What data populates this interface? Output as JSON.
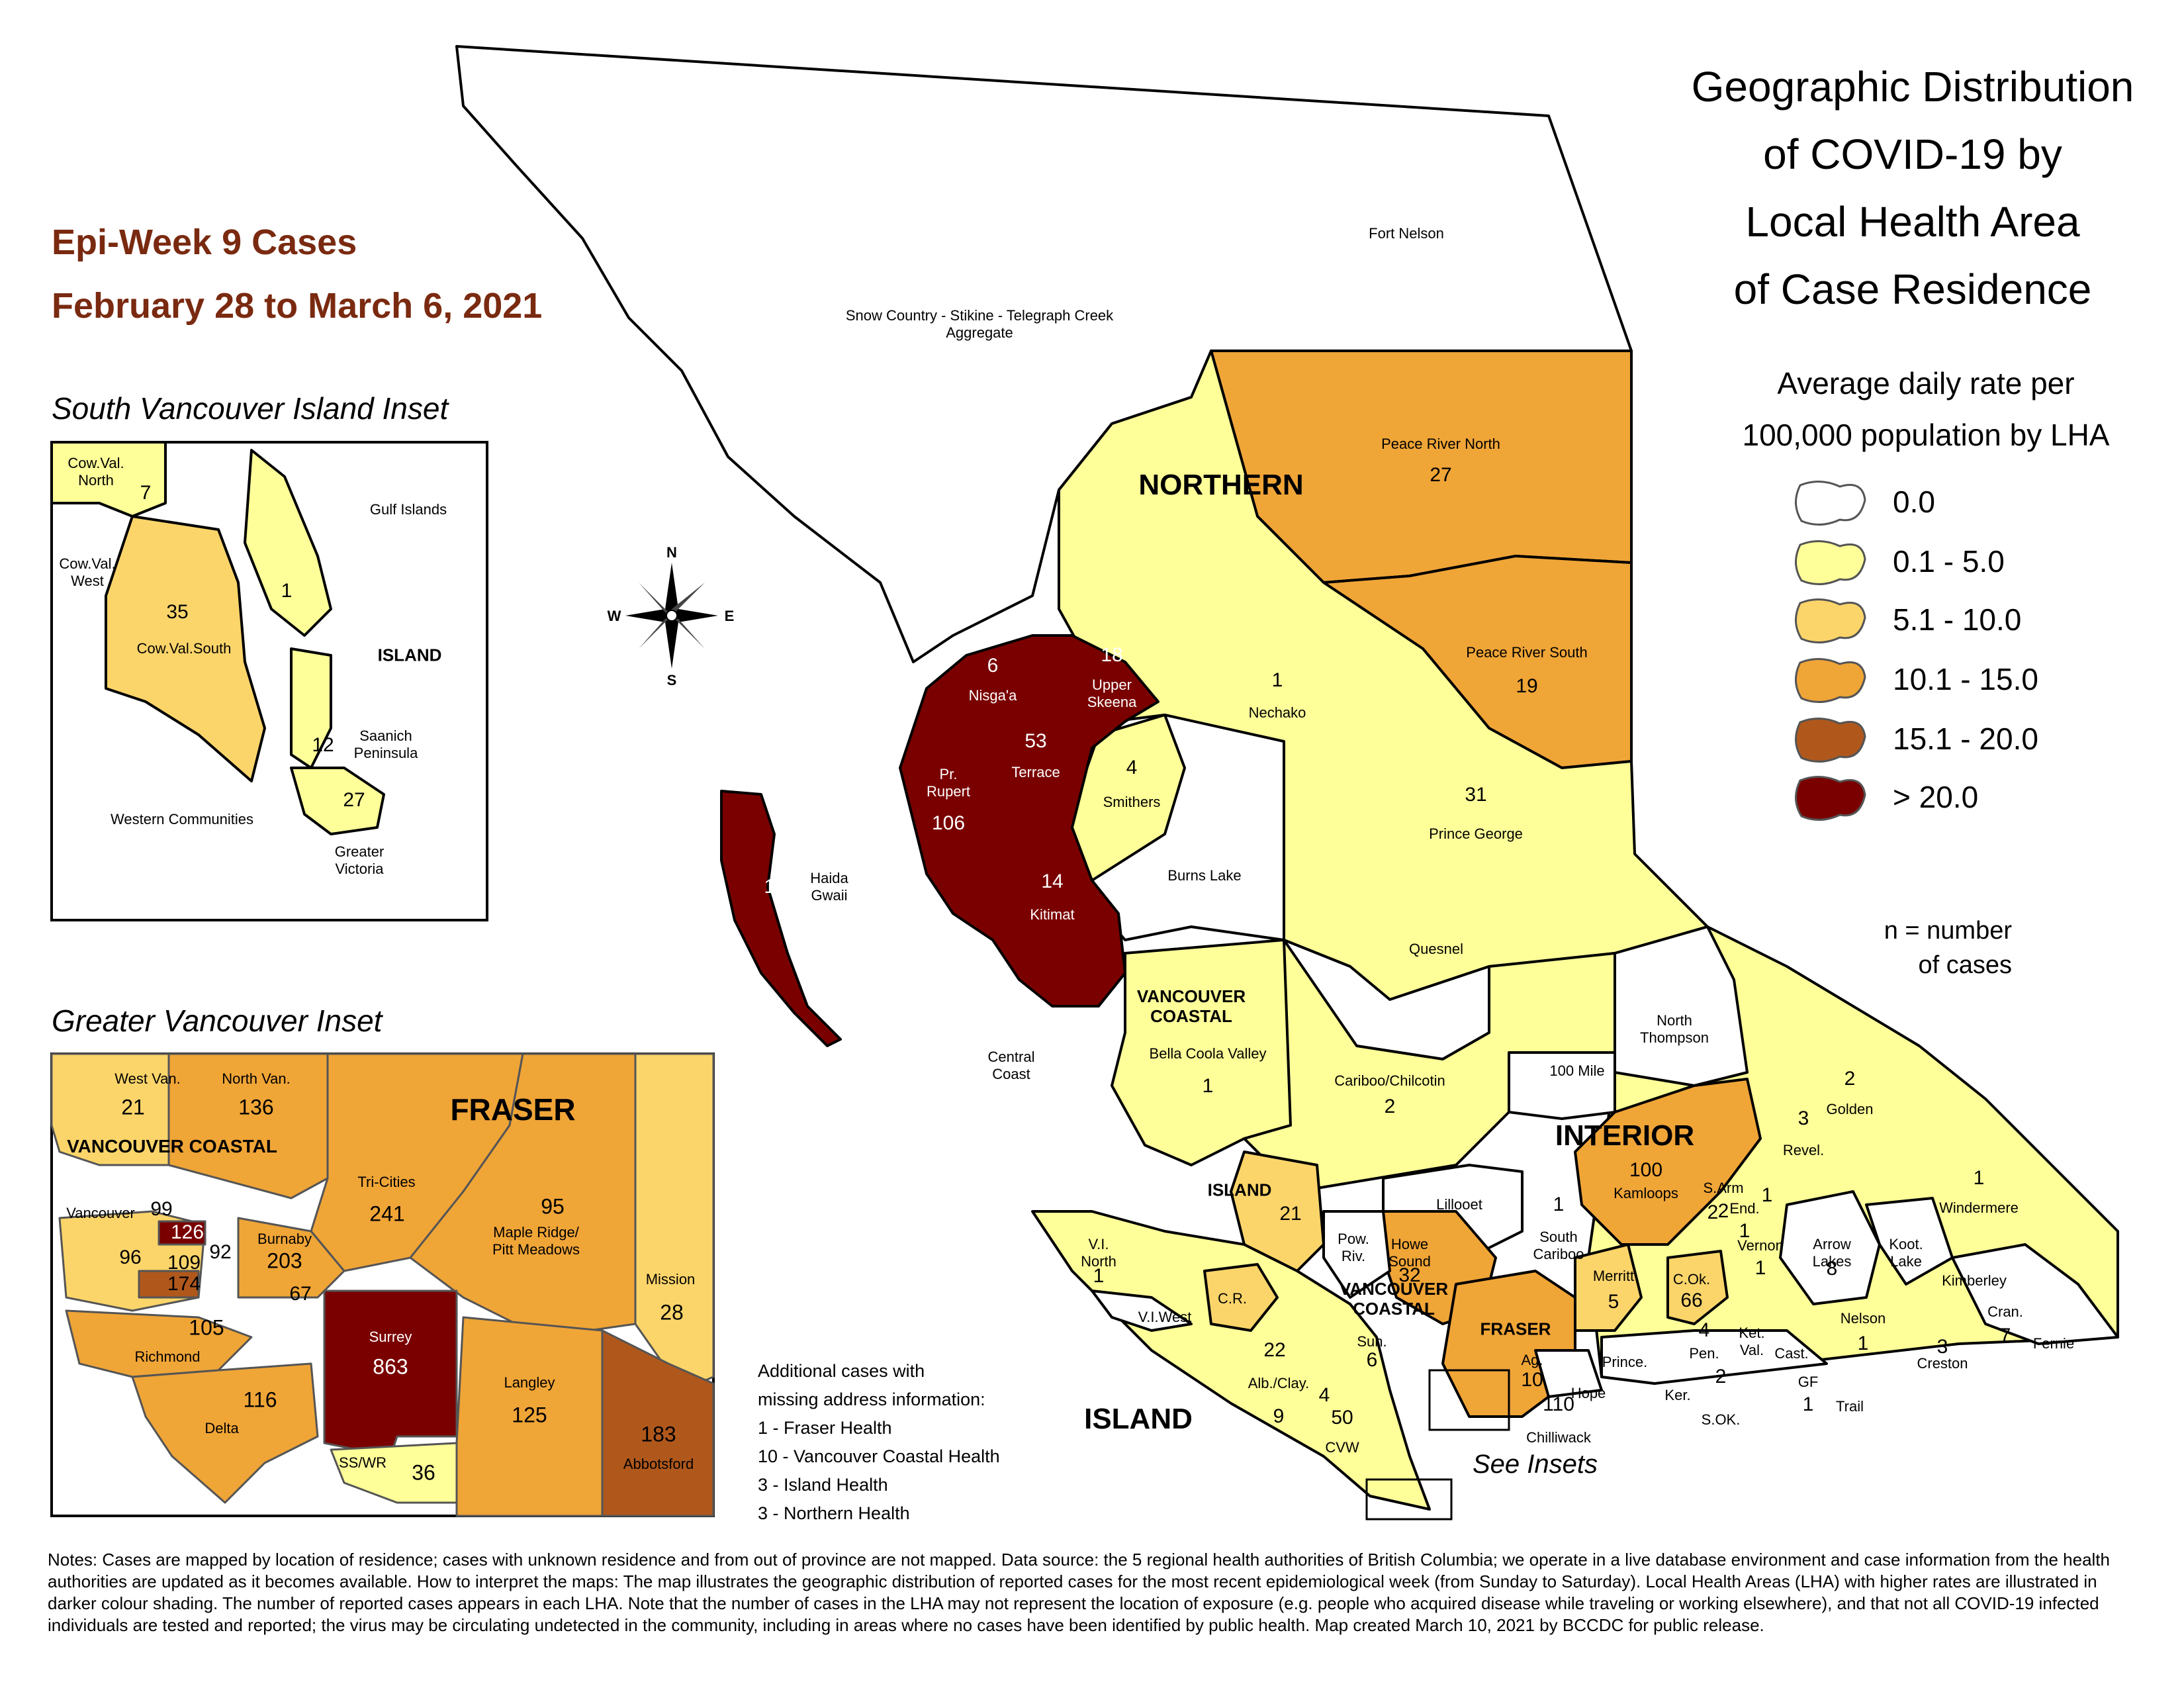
{
  "title": {
    "lines": [
      "Geographic Distribution",
      "of COVID-19 by",
      "Local Health Area",
      "of Case Residence"
    ]
  },
  "epi": {
    "line1": "Epi-Week 9 Cases",
    "line2": "February 28 to March 6, 2021"
  },
  "legend": {
    "title_line1": "Average daily rate per",
    "title_line2": "100,000 population by LHA",
    "items": [
      {
        "label": "0.0",
        "color": "#ffffff"
      },
      {
        "label": "0.1 - 5.0",
        "color": "#ffff99"
      },
      {
        "label": "5.1 - 10.0",
        "color": "#fcd56a"
      },
      {
        "label": "10.1 - 15.0",
        "color": "#f0a537"
      },
      {
        "label": "15.1 - 20.0",
        "color": "#b0581c"
      },
      {
        "label": "> 20.0",
        "color": "#7a0000"
      }
    ],
    "n_note_line1": "n = number",
    "n_note_line2": "of cases"
  },
  "compass": {
    "n": "N",
    "s": "S",
    "e": "E",
    "w": "W"
  },
  "regions": {
    "northern": "NORTHERN",
    "interior": "INTERIOR",
    "island_main": "ISLAND",
    "island_mid": "ISLAND",
    "vc_north_1": "VANCOUVER",
    "vc_north_2": "COASTAL",
    "vc_south_1": "VANCOUVER",
    "vc_south_2": "COASTAL",
    "fraser": "FRASER"
  },
  "lha_main": [
    {
      "id": "fort-nelson",
      "name": "Fort Nelson",
      "cases": ""
    },
    {
      "id": "snow-country",
      "name": "Snow Country - Stikine - Telegraph Creek",
      "name2": "Aggregate",
      "cases": ""
    },
    {
      "id": "peace-river-north",
      "name": "Peace River North",
      "cases": "27"
    },
    {
      "id": "peace-river-south",
      "name": "Peace River South",
      "cases": "19"
    },
    {
      "id": "nechako",
      "name": "Nechako",
      "cases": "1"
    },
    {
      "id": "prince-george",
      "name": "Prince George",
      "cases": "31"
    },
    {
      "id": "burns-lake",
      "name": "Burns Lake",
      "cases": ""
    },
    {
      "id": "quesnel",
      "name": "Quesnel",
      "cases": ""
    },
    {
      "id": "smithers",
      "name": "Smithers",
      "cases": "4"
    },
    {
      "id": "nisgaa",
      "name": "Nisga'a",
      "cases": "6"
    },
    {
      "id": "upper-skeena",
      "name": "Upper",
      "name2": "Skeena",
      "cases": "18"
    },
    {
      "id": "terrace",
      "name": "Terrace",
      "cases": "53"
    },
    {
      "id": "pr-rupert",
      "name": "Pr.",
      "name2": "Rupert",
      "cases": "106"
    },
    {
      "id": "kitimat",
      "name": "Kitimat",
      "cases": "14"
    },
    {
      "id": "haida-gwaii",
      "name": "Haida",
      "name2": "Gwaii",
      "cases": "11"
    },
    {
      "id": "central-coast",
      "name": "Central",
      "name2": "Coast",
      "cases": ""
    },
    {
      "id": "bella-coola",
      "name": "Bella Coola Valley",
      "cases": "1"
    },
    {
      "id": "cariboo",
      "name": "Cariboo/Chilcotin",
      "cases": "2"
    },
    {
      "id": "100-mile",
      "name": "100 Mile",
      "cases": ""
    },
    {
      "id": "north-thompson",
      "name": "North",
      "name2": "Thompson",
      "cases": ""
    },
    {
      "id": "kamloops",
      "name": "Kamloops",
      "cases": "100"
    },
    {
      "id": "golden",
      "name": "Golden",
      "cases": "2"
    },
    {
      "id": "revel",
      "name": "Revel.",
      "cases": "3"
    },
    {
      "id": "windermere",
      "name": "Windermere",
      "cases": "1"
    },
    {
      "id": "lillooet",
      "name": "Lillooet",
      "cases": ""
    },
    {
      "id": "south-cariboo",
      "name": "South",
      "name2": "Cariboo",
      "cases": "1"
    },
    {
      "id": "s-arm",
      "name": "S.Arm",
      "cases": "2"
    },
    {
      "id": "end",
      "name": "End.",
      "cases": "1"
    },
    {
      "id": "vernon",
      "name": "Vernon",
      "cases": "1"
    },
    {
      "id": "arrow-lakes",
      "name": "Arrow",
      "name2": "Lakes",
      "cases": "8"
    },
    {
      "id": "koot-lake",
      "name": "Koot.",
      "name2": "Lake",
      "cases": ""
    },
    {
      "id": "kimberley",
      "name": "Kimberley",
      "cases": ""
    },
    {
      "id": "merritt",
      "name": "Merritt",
      "cases": "5"
    },
    {
      "id": "c-ok",
      "name": "C.Ok.",
      "cases": "66"
    },
    {
      "id": "nelson",
      "name": "Nelson",
      "cases": "1"
    },
    {
      "id": "creston",
      "name": "Creston",
      "cases": "3"
    },
    {
      "id": "cran",
      "name": "Cran.",
      "cases": "7"
    },
    {
      "id": "fernie",
      "name": "Fernie",
      "cases": ""
    },
    {
      "id": "pen",
      "name": "Pen.",
      "cases": "4"
    },
    {
      "id": "ket-val",
      "name": "Ket.",
      "name2": "Val.",
      "cases": ""
    },
    {
      "id": "prince",
      "name": "Prince.",
      "cases": ""
    },
    {
      "id": "ker",
      "name": "Ker.",
      "cases": ""
    },
    {
      "id": "s-ok",
      "name": "S.OK.",
      "cases": "2"
    },
    {
      "id": "cast",
      "name": "Cast.",
      "cases": ""
    },
    {
      "id": "gf",
      "name": "GF",
      "cases": "1"
    },
    {
      "id": "trail",
      "name": "Trail",
      "cases": ""
    },
    {
      "id": "vi-north",
      "name": "V.I.",
      "name2": "North",
      "cases": "1"
    },
    {
      "id": "vi-west",
      "name": "V.I.West",
      "cases": ""
    },
    {
      "id": "cr",
      "name": "C.R.",
      "cases": ""
    },
    {
      "id": "howe-sound",
      "name": "Howe",
      "name2": "Sound",
      "cases": "32"
    },
    {
      "id": "pow-riv",
      "name": "Pow.",
      "name2": "Riv.",
      "cases": ""
    },
    {
      "id": "sun",
      "name": "Sun.",
      "cases": "6"
    },
    {
      "id": "alb-clay",
      "name": "Alb./Clay.",
      "cases": "9"
    },
    {
      "id": "cvw",
      "name": "CVW",
      "cases": "50"
    },
    {
      "id": "hope",
      "name": "Hope",
      "cases": ""
    },
    {
      "id": "chilliwack",
      "name": "Chilliwack",
      "cases": "110"
    },
    {
      "id": "ag",
      "name": "Ag.",
      "cases": "10"
    }
  ],
  "extra_numbers": {
    "island_mid_a": "21",
    "island_mid_b": "22",
    "island_mid_c": "4",
    "interior_kamloops_area": "1",
    "vernon_area": "2"
  },
  "south_vi_inset": {
    "title": "South Vancouver Island Inset",
    "areas": [
      {
        "id": "cow-val-north",
        "name": "Cow.Val.",
        "name2": "North",
        "cases": "7"
      },
      {
        "id": "gulf-islands",
        "name": "Gulf Islands",
        "cases": "1"
      },
      {
        "id": "cow-val-west",
        "name": "Cow.Val.",
        "name2": "West",
        "cases": ""
      },
      {
        "id": "cow-val-south",
        "name": "Cow.Val.South",
        "cases": "35"
      },
      {
        "id": "saanich",
        "name": "Saanich",
        "name2": "Peninsula",
        "cases": "12"
      },
      {
        "id": "western-communities",
        "name": "Western Communities",
        "cases": ""
      },
      {
        "id": "greater-victoria",
        "name": "Greater",
        "name2": "Victoria",
        "cases": "27"
      }
    ],
    "region_label": "ISLAND"
  },
  "gv_inset": {
    "title": "Greater Vancouver Inset",
    "region_fraser": "FRASER",
    "region_vc": "VANCOUVER COASTAL",
    "areas": [
      {
        "id": "west-van",
        "name": "West Van.",
        "cases": "21"
      },
      {
        "id": "north-van",
        "name": "North Van.",
        "cases": "136"
      },
      {
        "id": "tri-cities",
        "name": "Tri-Cities",
        "cases": "241"
      },
      {
        "id": "maple-ridge",
        "name": "Maple Ridge/",
        "name2": "Pitt Meadows",
        "cases": "95"
      },
      {
        "id": "mission",
        "name": "Mission",
        "cases": "28"
      },
      {
        "id": "vancouver",
        "name": "Vancouver",
        "cases": ""
      },
      {
        "id": "burnaby",
        "name": "Burnaby",
        "cases": "203"
      },
      {
        "id": "richmond",
        "name": "Richmond",
        "cases": "105"
      },
      {
        "id": "delta",
        "name": "Delta",
        "cases": "116"
      },
      {
        "id": "surrey",
        "name": "Surrey",
        "cases": "863"
      },
      {
        "id": "langley",
        "name": "Langley",
        "cases": "125"
      },
      {
        "id": "abbotsford",
        "name": "Abbotsford",
        "cases": "183"
      },
      {
        "id": "sswr",
        "name": "SS/WR",
        "cases": "36"
      }
    ],
    "vancouver_subareas": [
      "99",
      "126",
      "96",
      "109",
      "92",
      "174"
    ],
    "new_west": "67"
  },
  "missing": {
    "lines": [
      "Additional cases with",
      "missing address information:",
      "1 - Fraser Health",
      "10 - Vancouver Coastal Health",
      "3 - Island Health",
      "3 - Northern Health"
    ]
  },
  "see_insets": "See Insets",
  "notes": "Notes: Cases are mapped by location of residence; cases with unknown residence and from out of province are not mapped. Data source: the 5 regional health authorities of British Columbia; we operate in a live database environment and case information from the health authorities are updated as it becomes available. How to interpret the maps: The map illustrates the geographic distribution of reported cases for the most recent epidemiological week (from Sunday to Saturday). Local Health Areas (LHA) with higher rates are illustrated in darker colour shading. The number of reported cases appears in each LHA. Note that the number of cases in the LHA may not represent the location of exposure (e.g. people who acquired disease while traveling or working elsewhere), and that not all COVID-19 infected individuals are tested and reported; the virus may be circulating undetected in the community, including in areas where no cases have been identified by public health. Map created March 10, 2021 by BCCDC for public release."
}
